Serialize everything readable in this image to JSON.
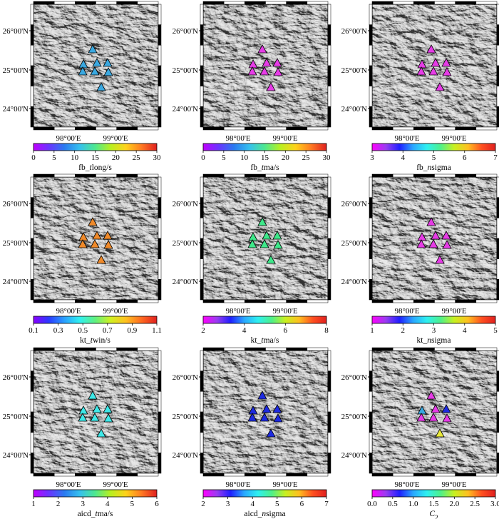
{
  "lat_labels": [
    "26°00'N",
    "25°00'N",
    "24°00'N"
  ],
  "lon_labels": [
    "98°00'E",
    "99°00'E"
  ],
  "panels": [
    {
      "id": "fb_tlong",
      "title_parts": [
        {
          "t": "fb_",
          "i": false
        },
        {
          "t": "t",
          "i": true
        },
        {
          "t": "long/s",
          "i": false
        }
      ],
      "ticks": [
        "0",
        "5",
        "10",
        "15",
        "20",
        "25",
        "30"
      ],
      "cmap": "rainbow_a",
      "station_colors": [
        "#3aa8e0",
        "#3aa8e0",
        "#3aa8e0",
        "#3aa8e0",
        "#3aa8e0",
        "#3aa8e0",
        "#3aa8e0",
        "#3aa8e0"
      ]
    },
    {
      "id": "fb_tma",
      "title_parts": [
        {
          "t": "fb_",
          "i": false
        },
        {
          "t": "t",
          "i": true
        },
        {
          "t": "ma/s",
          "i": false
        }
      ],
      "ticks": [
        "0",
        "5",
        "10",
        "15",
        "20",
        "25",
        "30"
      ],
      "cmap": "rainbow_a",
      "station_colors": [
        "#e63ce6",
        "#e63ce6",
        "#e63ce6",
        "#e63ce6",
        "#e63ce6",
        "#e63ce6",
        "#e63ce6",
        "#e63ce6"
      ]
    },
    {
      "id": "fb_nsigma",
      "title_parts": [
        {
          "t": "fb_",
          "i": false
        },
        {
          "t": "n",
          "i": true
        },
        {
          "t": "sigma",
          "i": false
        }
      ],
      "ticks": [
        "3",
        "4",
        "5",
        "6",
        "7"
      ],
      "cmap": "rainbow_b",
      "station_colors": [
        "#e63ce6",
        "#e63ce6",
        "#e63ce6",
        "#e63ce6",
        "#e63ce6",
        "#e63ce6",
        "#e63ce6",
        "#e63ce6"
      ]
    },
    {
      "id": "kt_twin",
      "title_parts": [
        {
          "t": "kt_",
          "i": false
        },
        {
          "t": "t",
          "i": true
        },
        {
          "t": "win/s",
          "i": false
        }
      ],
      "ticks": [
        "0.1",
        "0.3",
        "0.5",
        "0.7",
        "0.9",
        "1.1"
      ],
      "cmap": "rainbow_c",
      "station_colors": [
        "#f08a2a",
        "#f08a2a",
        "#f08a2a",
        "#f08a2a",
        "#f08a2a",
        "#f08a2a",
        "#f08a2a",
        "#f08a2a"
      ]
    },
    {
      "id": "kt_tma",
      "title_parts": [
        {
          "t": "kt_",
          "i": false
        },
        {
          "t": "t",
          "i": true
        },
        {
          "t": "ma/s",
          "i": false
        }
      ],
      "ticks": [
        "2",
        "4",
        "6",
        "8"
      ],
      "cmap": "rainbow_b",
      "station_colors": [
        "#3ee88a",
        "#3ee88a",
        "#3ee88a",
        "#3ee88a",
        "#3ee88a",
        "#3ee88a",
        "#3ee88a",
        "#3ee88a"
      ]
    },
    {
      "id": "kt_nsigma",
      "title_parts": [
        {
          "t": "kt_",
          "i": false
        },
        {
          "t": "n",
          "i": true
        },
        {
          "t": "sigma",
          "i": false
        }
      ],
      "ticks": [
        "1",
        "2",
        "3",
        "4",
        "5"
      ],
      "cmap": "rainbow_b",
      "station_colors": [
        "#e63ce6",
        "#e63ce6",
        "#e63ce6",
        "#e63ce6",
        "#e63ce6",
        "#e63ce6",
        "#e63ce6",
        "#e63ce6"
      ]
    },
    {
      "id": "aicd_tma",
      "title_parts": [
        {
          "t": "aicd_",
          "i": false
        },
        {
          "t": "t",
          "i": true
        },
        {
          "t": "ma/s",
          "i": false
        }
      ],
      "ticks": [
        "1",
        "2",
        "3",
        "4",
        "5",
        "6"
      ],
      "cmap": "rainbow_a",
      "station_colors": [
        "#3ee8e8",
        "#3ee8e8",
        "#3ee8e8",
        "#3ee8e8",
        "#3ee8e8",
        "#3ee8e8",
        "#3ee8e8",
        "#3ee8e8"
      ]
    },
    {
      "id": "aicd_nsigma",
      "title_parts": [
        {
          "t": "aicd_",
          "i": false
        },
        {
          "t": "n",
          "i": true
        },
        {
          "t": "sigma",
          "i": false
        }
      ],
      "ticks": [
        "2",
        "3",
        "4",
        "5",
        "6",
        "7"
      ],
      "cmap": "rainbow_b",
      "station_colors": [
        "#1e2be0",
        "#1e2be0",
        "#1e2be0",
        "#1e2be0",
        "#1e2be0",
        "#1e2be0",
        "#1e2be0",
        "#1e2be0"
      ]
    },
    {
      "id": "c2",
      "title_parts": [
        {
          "t": "C",
          "i": true
        },
        {
          "t": "2",
          "i": false,
          "sub": true
        }
      ],
      "ticks": [
        "0.0",
        "0.5",
        "1.0",
        "1.5",
        "2.0",
        "2.5",
        "3.0"
      ],
      "cmap": "rainbow_b",
      "station_colors": [
        "#e63ce6",
        "#3aa8e0",
        "#e63ce6",
        "#1e2be0",
        "#e63ce6",
        "#e63ce6",
        "#e63ce6",
        "#e8e83a"
      ]
    }
  ],
  "colormaps": {
    "rainbow_a": [
      "#c000ff",
      "#6a35ff",
      "#2a7af0",
      "#35c0ee",
      "#4ee88f",
      "#b8f020",
      "#ffd21a",
      "#ff7a22",
      "#e02020"
    ],
    "rainbow_b": [
      "#ff00ff",
      "#9a3cf0",
      "#1f1fff",
      "#2aa8ff",
      "#2ef0f0",
      "#4ef08a",
      "#c8f020",
      "#ffbf20",
      "#ff5020",
      "#e02020"
    ],
    "rainbow_c": [
      "#8a00ff",
      "#2a3aff",
      "#2aa0ff",
      "#30f0f0",
      "#60f080",
      "#d0f020",
      "#ffc020",
      "#ff6a20",
      "#e02020"
    ]
  }
}
